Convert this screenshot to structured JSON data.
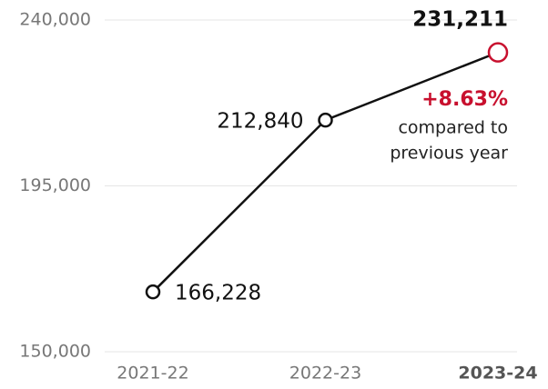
{
  "chart_data": {
    "type": "line",
    "categories": [
      "2021-22",
      "2022-23",
      "2023-24"
    ],
    "series": [
      {
        "values": [
          166228,
          212840,
          231211
        ],
        "value_labels": [
          "166,228",
          "212,840",
          "231,211"
        ],
        "color": "#111111"
      }
    ],
    "highlight_index": 2,
    "highlight_color": "#c8102e",
    "ylim": [
      150000,
      240000
    ],
    "yticks": [
      {
        "value": 150000,
        "label": "150,000"
      },
      {
        "value": 195000,
        "label": "195,000"
      },
      {
        "value": 240000,
        "label": "240,000"
      }
    ],
    "grid": true,
    "annotation": {
      "change": "+8.63%",
      "lines": [
        "compared to",
        "previous year"
      ]
    }
  }
}
